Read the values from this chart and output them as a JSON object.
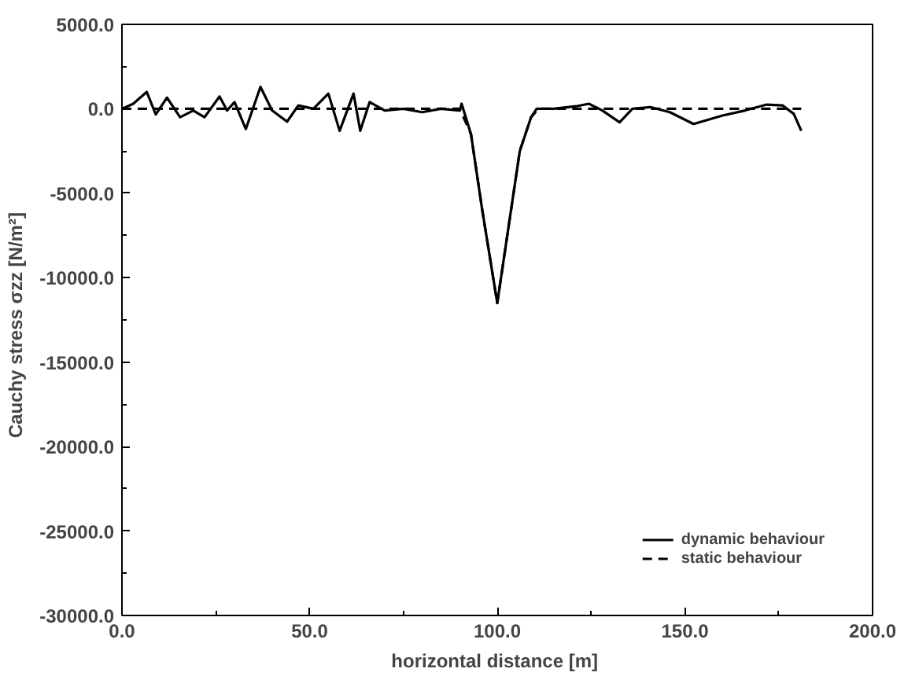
{
  "chart_data": {
    "type": "line",
    "xlabel": "horizontal distance  [m]",
    "ylabel": "Cauchy stress  σzz  [N/m²]",
    "xlim": [
      0,
      200
    ],
    "ylim": [
      -30000,
      5000
    ],
    "xticks": [
      {
        "value": 0,
        "label": "0.0"
      },
      {
        "value": 50,
        "label": "50.0"
      },
      {
        "value": 100,
        "label": "100.0"
      },
      {
        "value": 150,
        "label": "150.0"
      },
      {
        "value": 200,
        "label": "200.0"
      }
    ],
    "yticks": [
      {
        "value": -30000,
        "label": "-30000.0"
      },
      {
        "value": -25000,
        "label": "-25000.0"
      },
      {
        "value": -20000,
        "label": "-20000.0"
      },
      {
        "value": -15000,
        "label": "-15000.0"
      },
      {
        "value": -10000,
        "label": "-10000.0"
      },
      {
        "value": -5000,
        "label": "-5000.0"
      },
      {
        "value": 0,
        "label": "0.0"
      },
      {
        "value": 5000,
        "label": "5000.0"
      }
    ],
    "grid": false,
    "legend": "bottom right",
    "series": [
      {
        "name": "dynamic behaviour",
        "color": "#000000",
        "line_style": "solid",
        "x": [
          0,
          3,
          6.6,
          9,
          12,
          15.5,
          19,
          22,
          26,
          28,
          30,
          33,
          36.9,
          40,
          44,
          47,
          51,
          55,
          58,
          61.7,
          63.5,
          66,
          70,
          75,
          80,
          85,
          90,
          90.5,
          93,
          96,
          100,
          103,
          106,
          109,
          110.5,
          115,
          121,
          124.4,
          128,
          132.6,
          136,
          140.8,
          146,
          152.3,
          160,
          166,
          171.8,
          176,
          179,
          181
        ],
        "values": [
          0,
          300,
          1000,
          -330,
          660,
          -500,
          -100,
          -500,
          730,
          -100,
          400,
          -1200,
          1300,
          -100,
          -760,
          200,
          0,
          900,
          -1300,
          900,
          -1300,
          400,
          -100,
          0,
          -200,
          0,
          -100,
          300,
          -1500,
          -6000,
          -11500,
          -7000,
          -2500,
          -500,
          0,
          0,
          150,
          300,
          -100,
          -800,
          0,
          100,
          -200,
          -900,
          -400,
          -100,
          250,
          200,
          -300,
          -1300
        ]
      },
      {
        "name": "static behaviour",
        "color": "#000000",
        "line_style": "dashed",
        "x": [
          0,
          90,
          93,
          96,
          100,
          103,
          106,
          109,
          111,
          181
        ],
        "values": [
          0,
          0,
          -1500,
          -6000,
          -11500,
          -7000,
          -2500,
          -500,
          0,
          0
        ]
      }
    ]
  }
}
